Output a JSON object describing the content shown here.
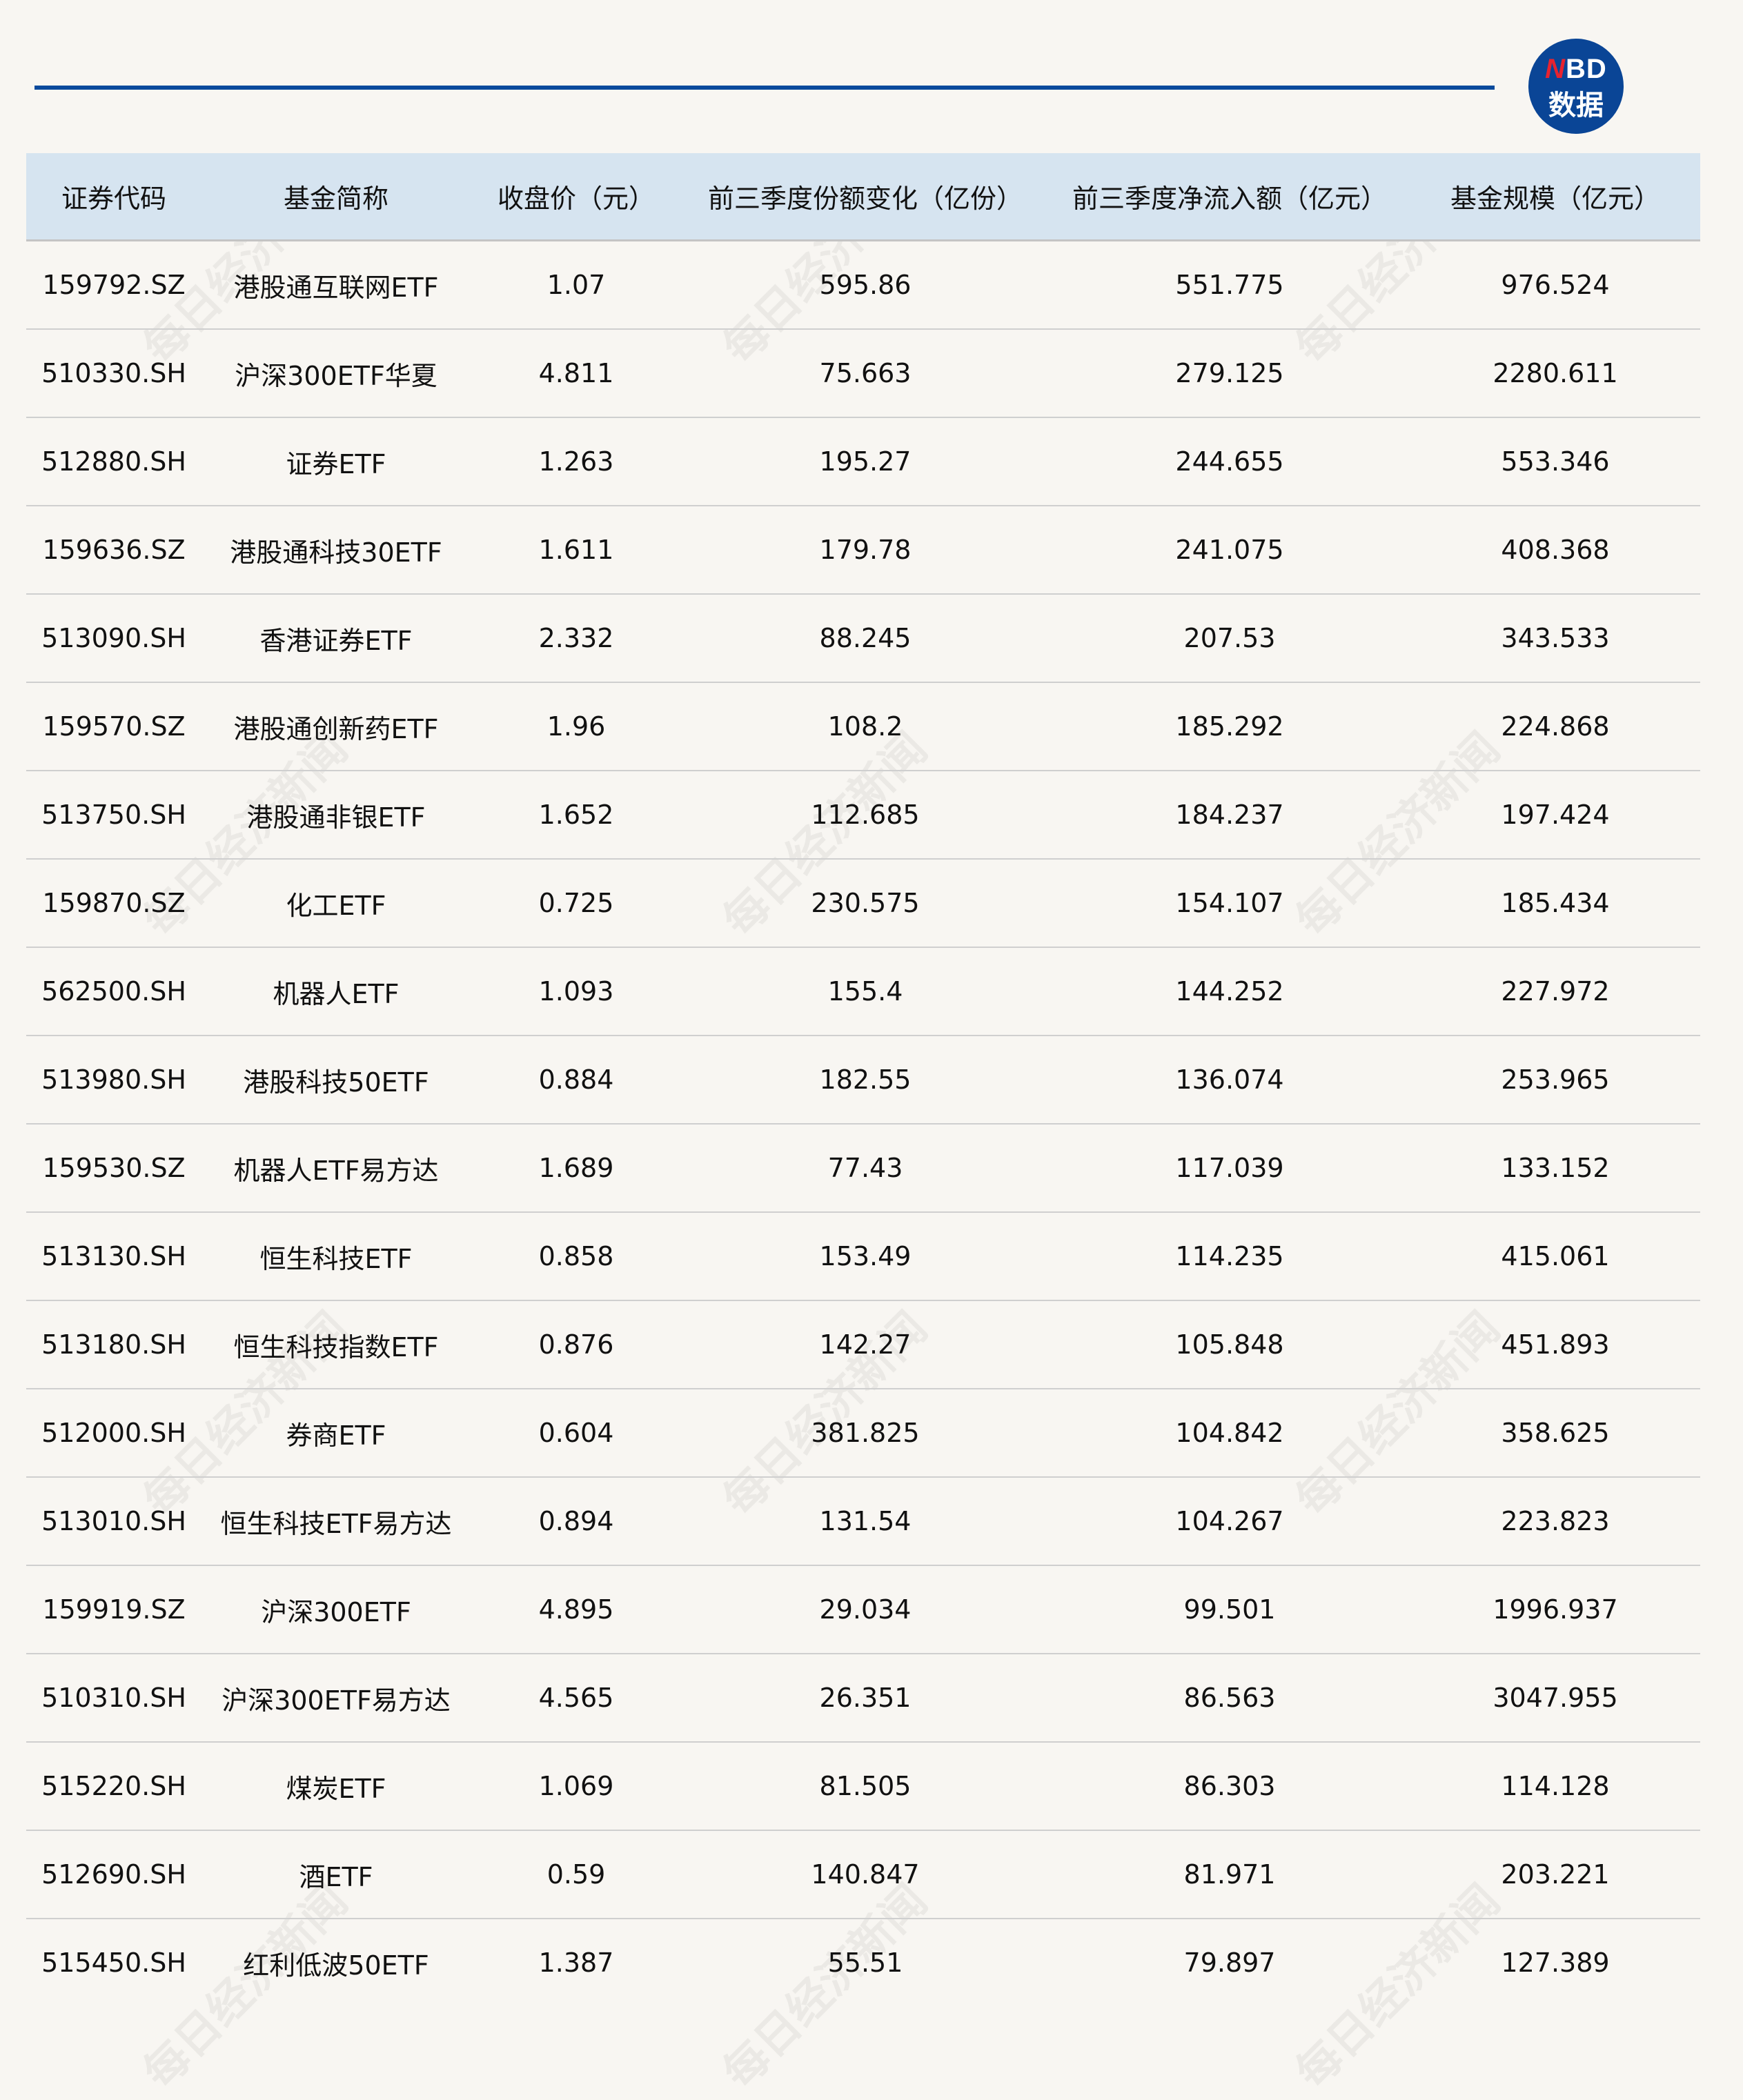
{
  "logo": {
    "n": "N",
    "bd": "BD",
    "sub": "数据"
  },
  "watermark": "每日经济新闻",
  "colors": {
    "accent": "#0a4a9c",
    "header_bg": "#d6e4f0",
    "logo_red": "#e8232f",
    "background": "#f8f6f2"
  },
  "table": {
    "headers": [
      "证券代码",
      "基金简称",
      "收盘价（元）",
      "前三季度份额变化（亿份）",
      "前三季度净流入额（亿元）",
      "基金规模（亿元）"
    ],
    "rows": [
      [
        "159792.SZ",
        "港股通互联网ETF",
        "1.07",
        "595.86",
        "551.775",
        "976.524"
      ],
      [
        "510330.SH",
        "沪深300ETF华夏",
        "4.811",
        "75.663",
        "279.125",
        "2280.611"
      ],
      [
        "512880.SH",
        "证券ETF",
        "1.263",
        "195.27",
        "244.655",
        "553.346"
      ],
      [
        "159636.SZ",
        "港股通科技30ETF",
        "1.611",
        "179.78",
        "241.075",
        "408.368"
      ],
      [
        "513090.SH",
        "香港证券ETF",
        "2.332",
        "88.245",
        "207.53",
        "343.533"
      ],
      [
        "159570.SZ",
        "港股通创新药ETF",
        "1.96",
        "108.2",
        "185.292",
        "224.868"
      ],
      [
        "513750.SH",
        "港股通非银ETF",
        "1.652",
        "112.685",
        "184.237",
        "197.424"
      ],
      [
        "159870.SZ",
        "化工ETF",
        "0.725",
        "230.575",
        "154.107",
        "185.434"
      ],
      [
        "562500.SH",
        "机器人ETF",
        "1.093",
        "155.4",
        "144.252",
        "227.972"
      ],
      [
        "513980.SH",
        "港股科技50ETF",
        "0.884",
        "182.55",
        "136.074",
        "253.965"
      ],
      [
        "159530.SZ",
        "机器人ETF易方达",
        "1.689",
        "77.43",
        "117.039",
        "133.152"
      ],
      [
        "513130.SH",
        "恒生科技ETF",
        "0.858",
        "153.49",
        "114.235",
        "415.061"
      ],
      [
        "513180.SH",
        "恒生科技指数ETF",
        "0.876",
        "142.27",
        "105.848",
        "451.893"
      ],
      [
        "512000.SH",
        "券商ETF",
        "0.604",
        "381.825",
        "104.842",
        "358.625"
      ],
      [
        "513010.SH",
        "恒生科技ETF易方达",
        "0.894",
        "131.54",
        "104.267",
        "223.823"
      ],
      [
        "159919.SZ",
        "沪深300ETF",
        "4.895",
        "29.034",
        "99.501",
        "1996.937"
      ],
      [
        "510310.SH",
        "沪深300ETF易方达",
        "4.565",
        "26.351",
        "86.563",
        "3047.955"
      ],
      [
        "515220.SH",
        "煤炭ETF",
        "1.069",
        "81.505",
        "86.303",
        "114.128"
      ],
      [
        "512690.SH",
        "酒ETF",
        "0.59",
        "140.847",
        "81.971",
        "203.221"
      ],
      [
        "515450.SH",
        "红利低波50ETF",
        "1.387",
        "55.51",
        "79.897",
        "127.389"
      ]
    ]
  }
}
